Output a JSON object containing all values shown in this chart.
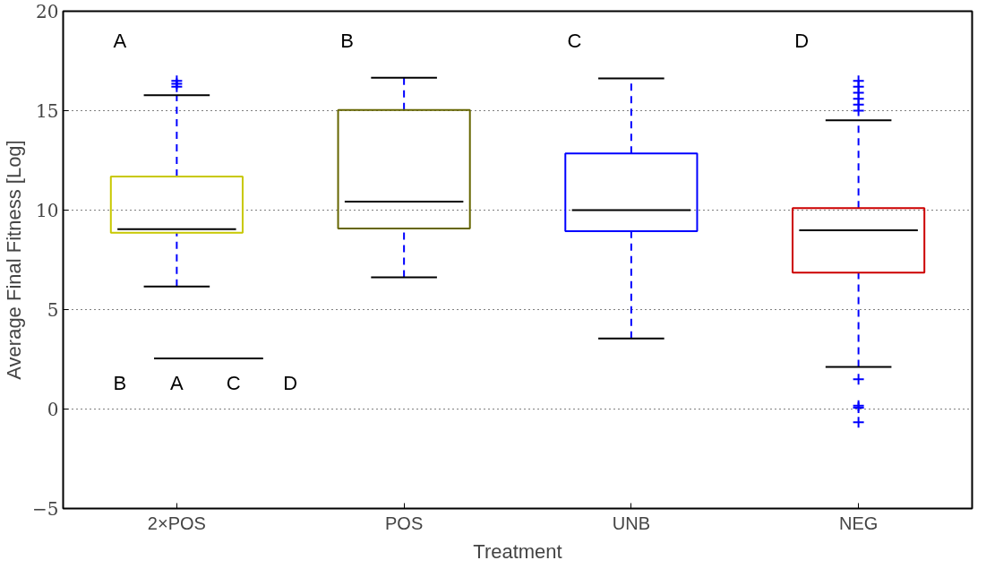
{
  "chart_data": {
    "type": "box",
    "xlabel": "Treatment",
    "ylabel": "Average Final Fitness [Log]",
    "categories": [
      "2×POS",
      "POS",
      "UNB",
      "NEG"
    ],
    "series": [
      {
        "boxes": [
          {
            "low": 6.16,
            "q1": 8.86,
            "median": 9.04,
            "q3": 11.69,
            "high": 15.78,
            "outliers": [
              16.2,
              16.35,
              16.5
            ]
          },
          {
            "low": 6.62,
            "q1": 9.08,
            "median": 10.43,
            "q3": 15.03,
            "high": 16.66
          },
          {
            "low": 3.55,
            "q1": 8.94,
            "median": 10.0,
            "q3": 12.85,
            "high": 16.62
          },
          {
            "low": 2.12,
            "q1": 6.86,
            "median": 8.99,
            "q3": 10.1,
            "high": 14.52,
            "outliers": [
              16.5,
              16.2,
              15.9,
              15.6,
              15.3,
              15.0,
              1.5,
              0.17,
              0.07,
              -0.67
            ]
          }
        ],
        "colors": [
          "#c8c800",
          "#666600",
          "#0000ff",
          "#cc0000"
        ]
      }
    ],
    "ylim": [
      -5,
      20
    ],
    "yticks": [
      {
        "value": -5,
        "label": "−5"
      },
      0,
      5,
      10,
      15,
      20
    ],
    "grid": "y",
    "annotations": [
      "A",
      "B",
      "C",
      "D",
      "B",
      "A",
      "C",
      "D"
    ]
  }
}
